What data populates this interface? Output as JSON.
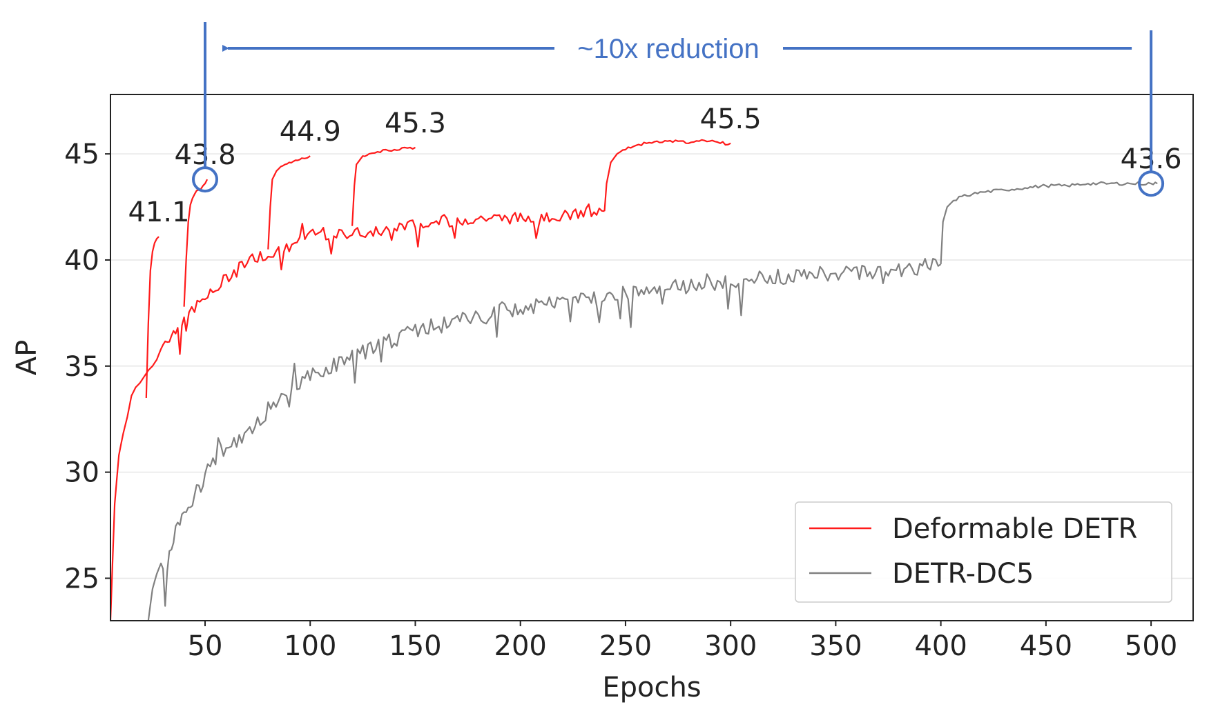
{
  "chart_data": {
    "type": "line",
    "title": "",
    "xlabel": "Epochs",
    "ylabel": "AP",
    "xlim": [
      5,
      520
    ],
    "ylim": [
      23,
      47.8
    ],
    "xticks": [
      50,
      100,
      150,
      200,
      250,
      300,
      350,
      400,
      450,
      500
    ],
    "yticks": [
      25,
      30,
      35,
      40,
      45
    ],
    "grid": "horizontal",
    "legend_position": "bottom-right",
    "colors": {
      "red": "#ff1a1a",
      "gray": "#808080",
      "annotation": "#4472c4"
    },
    "legend": [
      "Deformable DETR",
      "DETR-DC5"
    ],
    "series": [
      {
        "name": "Deformable DETR",
        "color": "#ff1a1a",
        "segments": [
          {
            "x": [
              5,
              7,
              9,
              11,
              13,
              15,
              17,
              19,
              21,
              23,
              25,
              27,
              29,
              31,
              33,
              35,
              37,
              39,
              41,
              45,
              50,
              55,
              60,
              65,
              70,
              75,
              80,
              85,
              90,
              95,
              100,
              110,
              120,
              130,
              140,
              150,
              160,
              170,
              180,
              190,
              200,
              210,
              220,
              230,
              240
            ],
            "y": [
              23,
              28.5,
              30.8,
              31.8,
              32.6,
              33.6,
              34.0,
              34.2,
              34.5,
              34.8,
              35.0,
              35.3,
              35.8,
              36.2,
              36.4,
              36.6,
              36.8,
              37.2,
              37.4,
              37.8,
              38.2,
              38.6,
              39.2,
              39.5,
              40.0,
              40.2,
              40.3,
              40.5,
              40.6,
              41.0,
              41.1,
              41.2,
              41.3,
              41.4,
              41.6,
              41.7,
              41.8,
              41.9,
              42.0,
              42.0,
              42.0,
              42.1,
              42.1,
              42.2,
              42.3
            ]
          },
          {
            "x": [
              22,
              23,
              24,
              25,
              26,
              27,
              28
            ],
            "y": [
              33.5,
              37.0,
              39.5,
              40.4,
              40.8,
              41.0,
              41.1
            ]
          },
          {
            "x": [
              40,
              41,
              42,
              43,
              44,
              45,
              47,
              49,
              50,
              51
            ],
            "y": [
              37.8,
              40.0,
              41.8,
              42.6,
              42.9,
              43.1,
              43.3,
              43.5,
              43.6,
              43.8
            ]
          },
          {
            "x": [
              80,
              81,
              82,
              84,
              86,
              88,
              90,
              93,
              96,
              100
            ],
            "y": [
              40.5,
              42.5,
              43.8,
              44.2,
              44.4,
              44.5,
              44.6,
              44.7,
              44.8,
              44.9
            ]
          },
          {
            "x": [
              120,
              121,
              122,
              125,
              128,
              132,
              136,
              140,
              145,
              150
            ],
            "y": [
              41.6,
              43.5,
              44.5,
              44.9,
              45.0,
              45.1,
              45.2,
              45.2,
              45.3,
              45.3
            ]
          },
          {
            "x": [
              240,
              241,
              243,
              246,
              250,
              255,
              260,
              265,
              270,
              275,
              280,
              285,
              290,
              295,
              300
            ],
            "y": [
              42.3,
              43.6,
              44.6,
              45.0,
              45.2,
              45.4,
              45.5,
              45.6,
              45.6,
              45.6,
              45.5,
              45.6,
              45.6,
              45.5,
              45.5
            ]
          }
        ]
      },
      {
        "name": "DETR-DC5",
        "color": "#808080",
        "segments": [
          {
            "x": [
              23,
              25,
              27,
              29,
              31,
              33,
              35,
              38,
              41,
              44,
              47,
              50,
              55,
              60,
              65,
              70,
              75,
              80,
              85,
              90,
              95,
              100,
              110,
              120,
              130,
              140,
              150,
              160,
              170,
              180,
              190,
              200,
              210,
              220,
              230,
              240,
              250,
              260,
              270,
              280,
              290,
              300,
              310,
              320,
              330,
              340,
              350,
              360,
              370,
              380,
              390,
              400
            ],
            "y": [
              23,
              24.5,
              25.2,
              25.7,
              25.2,
              26.2,
              27.0,
              27.8,
              28.2,
              28.7,
              29.3,
              29.9,
              30.7,
              31.3,
              31.5,
              31.8,
              32.3,
              33.0,
              33.6,
              34.0,
              34.3,
              34.6,
              35.0,
              35.5,
              35.9,
              36.3,
              36.7,
              37.0,
              37.2,
              37.4,
              37.6,
              37.7,
              37.9,
              38.1,
              38.2,
              38.3,
              38.5,
              38.6,
              38.7,
              38.8,
              38.9,
              39.0,
              39.1,
              39.2,
              39.3,
              39.4,
              39.4,
              39.5,
              39.5,
              39.6,
              39.7,
              39.8
            ]
          },
          {
            "x": [
              400,
              401,
              403,
              406,
              410,
              415,
              420,
              430,
              440,
              450,
              460,
              470,
              480,
              490,
              500,
              503
            ],
            "y": [
              39.8,
              41.8,
              42.5,
              42.8,
              43.0,
              43.1,
              43.2,
              43.3,
              43.4,
              43.5,
              43.5,
              43.6,
              43.6,
              43.6,
              43.6,
              43.6
            ]
          }
        ]
      }
    ],
    "point_labels": [
      {
        "text": "41.1",
        "x": 28,
        "y": 41.1
      },
      {
        "text": "43.8",
        "x": 50,
        "y": 43.8
      },
      {
        "text": "44.9",
        "x": 100,
        "y": 44.9
      },
      {
        "text": "45.3",
        "x": 150,
        "y": 45.3
      },
      {
        "text": "45.5",
        "x": 300,
        "y": 45.5
      },
      {
        "text": "43.6",
        "x": 500,
        "y": 43.6
      }
    ],
    "annotation": {
      "text": "~10x reduction",
      "from_x": 50,
      "to_x": 500,
      "circled_points": [
        {
          "x": 50,
          "y": 43.8
        },
        {
          "x": 500,
          "y": 43.6
        }
      ]
    }
  }
}
